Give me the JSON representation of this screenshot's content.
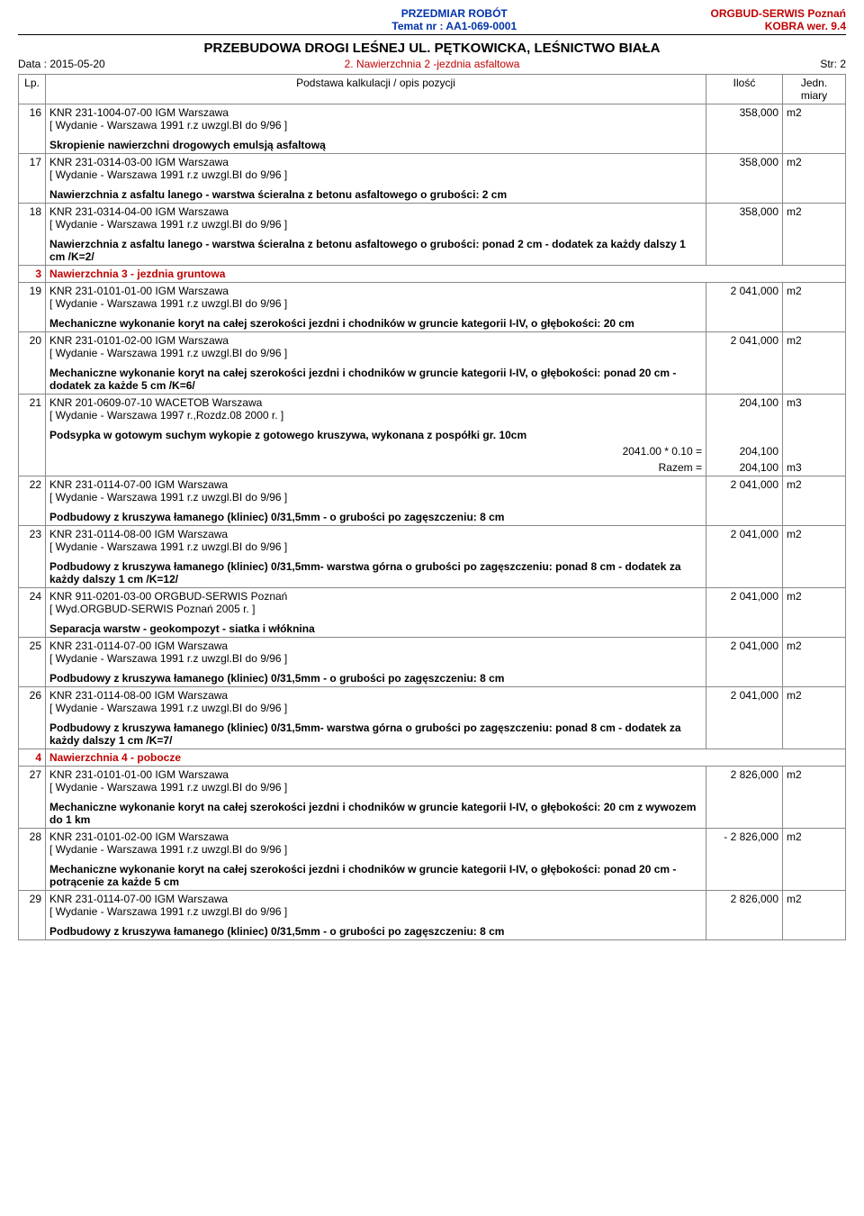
{
  "header": {
    "center_line1": "PRZEDMIAR  ROBÓT",
    "center_line2": "Temat nr : AA1-069-0001",
    "right_line1": "ORGBUD-SERWIS Poznań",
    "right_line2": "KOBRA wer. 9.4",
    "main_title": "PRZEBUDOWA DROGI LEŚNEJ UL. PĘTKOWICKA, LEŚNICTWO BIAŁA",
    "date": "Data : 2015-05-20",
    "section_note": "2. Nawierzchnia 2 -jezdnia asfaltowa",
    "page": "Str: 2"
  },
  "columns": {
    "lp": "Lp.",
    "desc": "Podstawa kalkulacji / opis pozycji",
    "qty": "Ilość",
    "unit": "Jedn. miary"
  },
  "rows": [
    {
      "lp": "16",
      "knr": "KNR 231-1004-07-00 IGM Warszawa",
      "wydanie": "[ Wydanie - Warszawa 1991 r.z uwzgl.BI do 9/96 ]",
      "qty": "358,000",
      "unit": "m2",
      "desc": "Skropienie nawierzchni drogowych emulsją asfaltową"
    },
    {
      "lp": "17",
      "knr": "KNR 231-0314-03-00 IGM Warszawa",
      "wydanie": "[ Wydanie - Warszawa 1991 r.z uwzgl.BI do 9/96 ]",
      "qty": "358,000",
      "unit": "m2",
      "desc": "Nawierzchnia z asfaltu lanego - warstwa ścieralna z betonu asfaltowego o grubości: 2 cm"
    },
    {
      "lp": "18",
      "knr": "KNR 231-0314-04-00 IGM Warszawa",
      "wydanie": "[ Wydanie - Warszawa 1991 r.z uwzgl.BI do 9/96 ]",
      "qty": "358,000",
      "unit": "m2",
      "desc": "Nawierzchnia z asfaltu lanego - warstwa ścieralna z betonu asfaltowego o grubości: ponad 2 cm - dodatek za każdy dalszy 1 cm /K=2/"
    },
    {
      "section": true,
      "lp": "3",
      "title": "Nawierzchnia 3 - jezdnia gruntowa"
    },
    {
      "lp": "19",
      "knr": "KNR 231-0101-01-00 IGM Warszawa",
      "wydanie": "[ Wydanie - Warszawa 1991 r.z uwzgl.BI do 9/96 ]",
      "qty": "2 041,000",
      "unit": "m2",
      "desc": "Mechaniczne wykonanie koryt na całej szerokości jezdni i chodników w gruncie kategorii I-IV, o głębokości: 20 cm"
    },
    {
      "lp": "20",
      "knr": "KNR 231-0101-02-00 IGM Warszawa",
      "wydanie": "[ Wydanie - Warszawa 1991 r.z uwzgl.BI do 9/96 ]",
      "qty": "2 041,000",
      "unit": "m2",
      "desc": "Mechaniczne wykonanie koryt na całej szerokości jezdni i chodników w gruncie kategorii I-IV, o głębokości: ponad 20 cm - dodatek za każde 5 cm /K=6/"
    },
    {
      "lp": "21",
      "knr": "KNR 201-0609-07-10 WACETOB Warszawa",
      "wydanie": "[ Wydanie - Warszawa 1997 r.,Rozdz.08 2000 r. ]",
      "qty": "204,100",
      "unit": "m3",
      "desc": "Podsypka  w gotowym suchym wykopie z gotowego kruszywa, wykonana z pospółki gr. 10cm",
      "calcs": [
        {
          "label": "2041.00 * 0.10 =",
          "qty": "204,100",
          "unit": ""
        },
        {
          "label": "Razem  =",
          "qty": "204,100",
          "unit": "m3"
        }
      ]
    },
    {
      "lp": "22",
      "knr": "KNR 231-0114-07-00 IGM Warszawa",
      "wydanie": "[ Wydanie - Warszawa 1991 r.z uwzgl.BI do 9/96 ]",
      "qty": "2 041,000",
      "unit": "m2",
      "desc": "Podbudowy z kruszywa łamanego (kliniec) 0/31,5mm - o grubości po zagęszczeniu: 8 cm"
    },
    {
      "lp": "23",
      "knr": "KNR 231-0114-08-00 IGM Warszawa",
      "wydanie": "[ Wydanie - Warszawa 1991 r.z uwzgl.BI do 9/96 ]",
      "qty": "2 041,000",
      "unit": "m2",
      "desc": "Podbudowy z kruszywa łamanego (kliniec) 0/31,5mm- warstwa górna o grubości po zagęszczeniu: ponad 8 cm - dodatek za każdy dalszy 1 cm /K=12/"
    },
    {
      "lp": "24",
      "knr": "KNR 911-0201-03-00 ORGBUD-SERWIS Poznań",
      "wydanie": "[ Wyd.ORGBUD-SERWIS Poznań 2005 r. ]",
      "qty": "2 041,000",
      "unit": "m2",
      "desc": "Separacja warstw - geokompozyt - siatka i włóknina"
    },
    {
      "lp": "25",
      "knr": "KNR 231-0114-07-00 IGM Warszawa",
      "wydanie": "[ Wydanie - Warszawa 1991 r.z uwzgl.BI do 9/96 ]",
      "qty": "2 041,000",
      "unit": "m2",
      "desc": "Podbudowy z kruszywa łamanego (kliniec) 0/31,5mm - o grubości po zagęszczeniu: 8 cm"
    },
    {
      "lp": "26",
      "knr": "KNR 231-0114-08-00 IGM Warszawa",
      "wydanie": "[ Wydanie - Warszawa 1991 r.z uwzgl.BI do 9/96 ]",
      "qty": "2 041,000",
      "unit": "m2",
      "desc": "Podbudowy z kruszywa łamanego (kliniec) 0/31,5mm- warstwa górna o grubości po zagęszczeniu: ponad 8 cm - dodatek za każdy dalszy 1 cm /K=7/"
    },
    {
      "section": true,
      "lp": "4",
      "title": "Nawierzchnia 4 - pobocze"
    },
    {
      "lp": "27",
      "knr": "KNR 231-0101-01-00 IGM Warszawa",
      "wydanie": "[ Wydanie - Warszawa 1991 r.z uwzgl.BI do 9/96 ]",
      "qty": "2 826,000",
      "unit": "m2",
      "desc": "Mechaniczne wykonanie koryt na całej szerokości jezdni i chodników w gruncie kategorii I-IV, o głębokości: 20 cm z wywozem do 1 km"
    },
    {
      "lp": "28",
      "knr": "KNR 231-0101-02-00 IGM Warszawa",
      "wydanie": "[ Wydanie - Warszawa 1991 r.z uwzgl.BI do 9/96 ]",
      "qty": "- 2 826,000",
      "unit": "m2",
      "desc": "Mechaniczne wykonanie koryt na całej szerokości jezdni i chodników w gruncie kategorii I-IV, o głębokości: ponad 20 cm - potrącenie za każde 5 cm"
    },
    {
      "lp": "29",
      "knr": "KNR 231-0114-07-00 IGM Warszawa",
      "wydanie": "[ Wydanie - Warszawa 1991 r.z uwzgl.BI do 9/96 ]",
      "qty": "2 826,000",
      "unit": "m2",
      "desc": "Podbudowy z kruszywa łamanego (kliniec) 0/31,5mm - o grubości po zagęszczeniu: 8 cm"
    }
  ]
}
